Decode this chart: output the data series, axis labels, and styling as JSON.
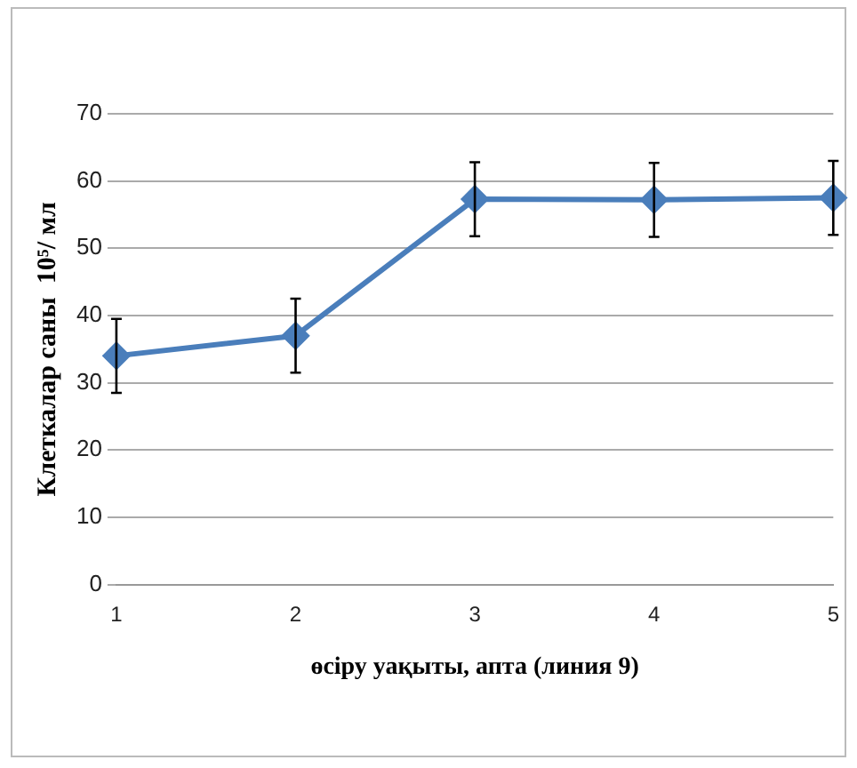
{
  "chart_data": {
    "type": "line",
    "xlabel": "өсіру уақыты, апта (линия 9)",
    "ylabel": "Клеткалар саны  10⁵/ мл",
    "categories": [
      "1",
      "2",
      "3",
      "4",
      "5"
    ],
    "series": [
      {
        "color": "#4a7ebb",
        "values": [
          34,
          37,
          57.3,
          57.2,
          57.5
        ],
        "errors": [
          5.5,
          5.5,
          5.5,
          5.5,
          5.5
        ]
      }
    ],
    "ylim": [
      0,
      70
    ],
    "yticks": [
      0,
      10,
      20,
      30,
      40,
      50,
      60,
      70
    ],
    "grid": "y",
    "legend": false,
    "marker": "diamond",
    "line_style": "solid"
  }
}
